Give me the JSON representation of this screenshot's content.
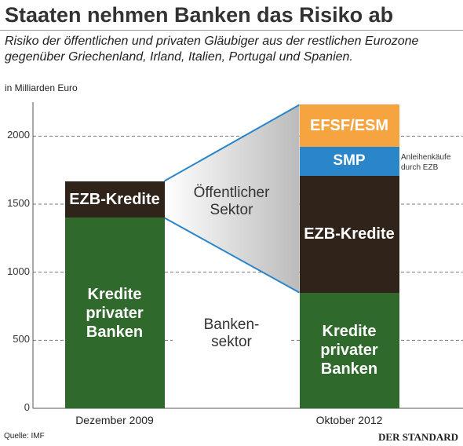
{
  "chart_data": {
    "type": "stacked-bar",
    "title": "Staaten nehmen Banken das Risiko ab",
    "subtitle": "Risiko der öffentlichen und privaten Gläubiger aus der restlichen Eurozone gegenüber Griechenland, Irland, Italien, Portugal und Spanien.",
    "unit": "in Milliarden Euro",
    "categories": [
      "Dezember 2009",
      "Oktober 2012"
    ],
    "series": [
      {
        "name": "Kredite privater Banken",
        "color": "#2f6a2c",
        "values": [
          1400,
          850
        ]
      },
      {
        "name": "EZB-Kredite",
        "color": "#30241a",
        "values": [
          270,
          860
        ]
      },
      {
        "name": "SMP",
        "color": "#2b86c9",
        "values": [
          null,
          210
        ]
      },
      {
        "name": "EFSF/ESM",
        "color": "#f5a440",
        "values": [
          null,
          310
        ]
      }
    ],
    "ylim": [
      0,
      2250
    ],
    "yticks": [
      0,
      500,
      1000,
      1500,
      2000
    ],
    "grid": true,
    "annotations": {
      "public": "Öffentlicher\nSektor",
      "banks": "Banken-\nsektor",
      "smp": "Anleihenkäufe durch EZB"
    },
    "source": "Quelle: IMF",
    "publisher": "DER STANDARD"
  }
}
